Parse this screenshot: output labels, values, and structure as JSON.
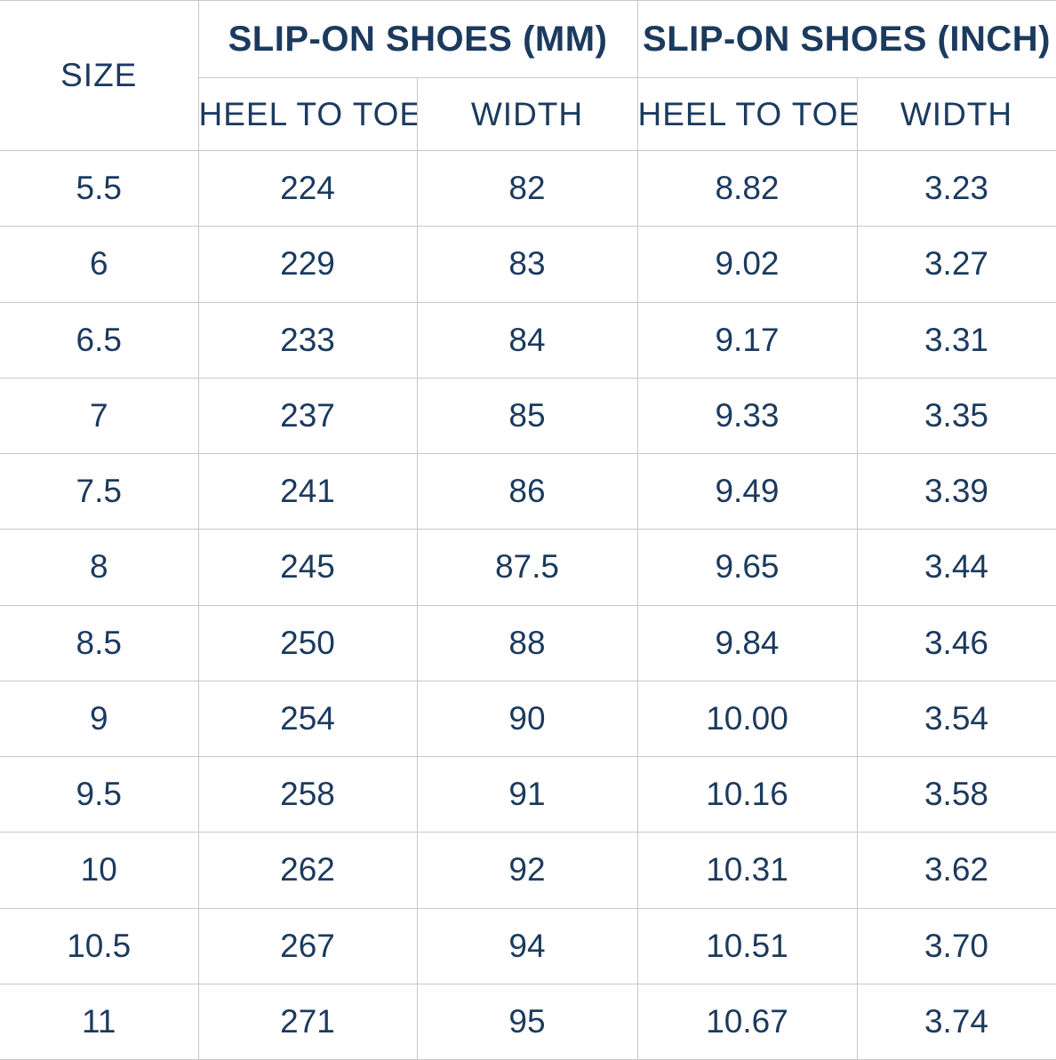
{
  "colors": {
    "text_navy": "#1b3a5e",
    "border_gray": "#c8c8c8",
    "background": "#ffffff"
  },
  "table": {
    "header": {
      "size_label": "SIZE",
      "group_mm_label": "SLIP-ON SHOES (MM)",
      "group_inch_label": "SLIP-ON SHOES (INCH)",
      "mm_heel_label": "HEEL TO TOE",
      "mm_width_label": "WIDTH",
      "inch_heel_label": "HEEL TO TOE",
      "inch_width_label": "WIDTH"
    },
    "row_keys": [
      "size",
      "mm_heel",
      "mm_width",
      "inch_heel",
      "inch_width"
    ],
    "rows": [
      {
        "size": "5.5",
        "mm_heel": "224",
        "mm_width": "82",
        "inch_heel": "8.82",
        "inch_width": "3.23"
      },
      {
        "size": "6",
        "mm_heel": "229",
        "mm_width": "83",
        "inch_heel": "9.02",
        "inch_width": "3.27"
      },
      {
        "size": "6.5",
        "mm_heel": "233",
        "mm_width": "84",
        "inch_heel": "9.17",
        "inch_width": "3.31"
      },
      {
        "size": "7",
        "mm_heel": "237",
        "mm_width": "85",
        "inch_heel": "9.33",
        "inch_width": "3.35"
      },
      {
        "size": "7.5",
        "mm_heel": "241",
        "mm_width": "86",
        "inch_heel": "9.49",
        "inch_width": "3.39"
      },
      {
        "size": "8",
        "mm_heel": "245",
        "mm_width": "87.5",
        "inch_heel": "9.65",
        "inch_width": "3.44"
      },
      {
        "size": "8.5",
        "mm_heel": "250",
        "mm_width": "88",
        "inch_heel": "9.84",
        "inch_width": "3.46"
      },
      {
        "size": "9",
        "mm_heel": "254",
        "mm_width": "90",
        "inch_heel": "10.00",
        "inch_width": "3.54"
      },
      {
        "size": "9.5",
        "mm_heel": "258",
        "mm_width": "91",
        "inch_heel": "10.16",
        "inch_width": "3.58"
      },
      {
        "size": "10",
        "mm_heel": "262",
        "mm_width": "92",
        "inch_heel": "10.31",
        "inch_width": "3.62"
      },
      {
        "size": "10.5",
        "mm_heel": "267",
        "mm_width": "94",
        "inch_heel": "10.51",
        "inch_width": "3.70"
      },
      {
        "size": "11",
        "mm_heel": "271",
        "mm_width": "95",
        "inch_heel": "10.67",
        "inch_width": "3.74"
      }
    ]
  },
  "chart_data": {
    "type": "table",
    "title": "Slip-on shoes size chart",
    "column_groups": [
      "SIZE",
      "SLIP-ON SHOES (MM)",
      "SLIP-ON SHOES (INCH)"
    ],
    "columns": [
      "SIZE",
      "MM HEEL TO TOE",
      "MM WIDTH",
      "INCH HEEL TO TOE",
      "INCH WIDTH"
    ],
    "rows": [
      [
        5.5,
        224,
        82,
        8.82,
        3.23
      ],
      [
        6,
        229,
        83,
        9.02,
        3.27
      ],
      [
        6.5,
        233,
        84,
        9.17,
        3.31
      ],
      [
        7,
        237,
        85,
        9.33,
        3.35
      ],
      [
        7.5,
        241,
        86,
        9.49,
        3.39
      ],
      [
        8,
        245,
        87.5,
        9.65,
        3.44
      ],
      [
        8.5,
        250,
        88,
        9.84,
        3.46
      ],
      [
        9,
        254,
        90,
        10.0,
        3.54
      ],
      [
        9.5,
        258,
        91,
        10.16,
        3.58
      ],
      [
        10,
        262,
        92,
        10.31,
        3.62
      ],
      [
        10.5,
        267,
        94,
        10.51,
        3.7
      ],
      [
        11,
        271,
        95,
        10.67,
        3.74
      ]
    ]
  }
}
